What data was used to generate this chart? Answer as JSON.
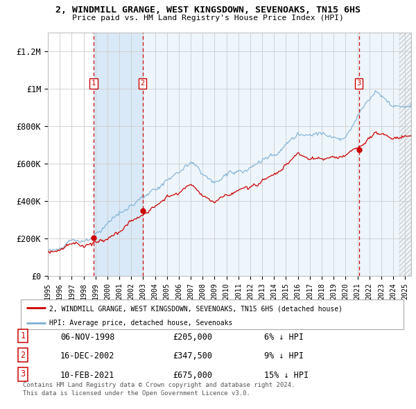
{
  "title": "2, WINDMILL GRANGE, WEST KINGSDOWN, SEVENOAKS, TN15 6HS",
  "subtitle": "Price paid vs. HM Land Registry's House Price Index (HPI)",
  "property_label": "2, WINDMILL GRANGE, WEST KINGSDOWN, SEVENOAKS, TN15 6HS (detached house)",
  "hpi_label": "HPI: Average price, detached house, Sevenoaks",
  "footnote1": "Contains HM Land Registry data © Crown copyright and database right 2024.",
  "footnote2": "This data is licensed under the Open Government Licence v3.0.",
  "sales": [
    {
      "num": 1,
      "date": "06-NOV-1998",
      "price": 205000,
      "pct": "6%",
      "direction": "↓"
    },
    {
      "num": 2,
      "date": "16-DEC-2002",
      "price": 347500,
      "pct": "9%",
      "direction": "↓"
    },
    {
      "num": 3,
      "date": "10-FEB-2021",
      "price": 675000,
      "pct": "15%",
      "direction": "↓"
    }
  ],
  "sale_years": [
    1998.84,
    2002.96,
    2021.12
  ],
  "sale_prices": [
    205000,
    347500,
    675000
  ],
  "ylim": [
    0,
    1300000
  ],
  "yticks": [
    0,
    200000,
    400000,
    600000,
    800000,
    1000000,
    1200000
  ],
  "ytick_labels": [
    "£0",
    "£200K",
    "£400K",
    "£600K",
    "£800K",
    "£1M",
    "£1.2M"
  ],
  "xmin": 1995,
  "xmax": 2025.5,
  "background_color": "#ffffff",
  "plot_bg_color": "#ffffff",
  "grid_color": "#cccccc",
  "hpi_color": "#7bafd4",
  "property_color": "#cc0000",
  "sale_marker_color": "#cc0000",
  "dashed_line_color": "#cc0000",
  "shade_color_dark": "#d0e4f5",
  "shade_color_light": "#e4f0fb",
  "shade_alpha_dark": 0.8,
  "shade_alpha_light": 0.6
}
